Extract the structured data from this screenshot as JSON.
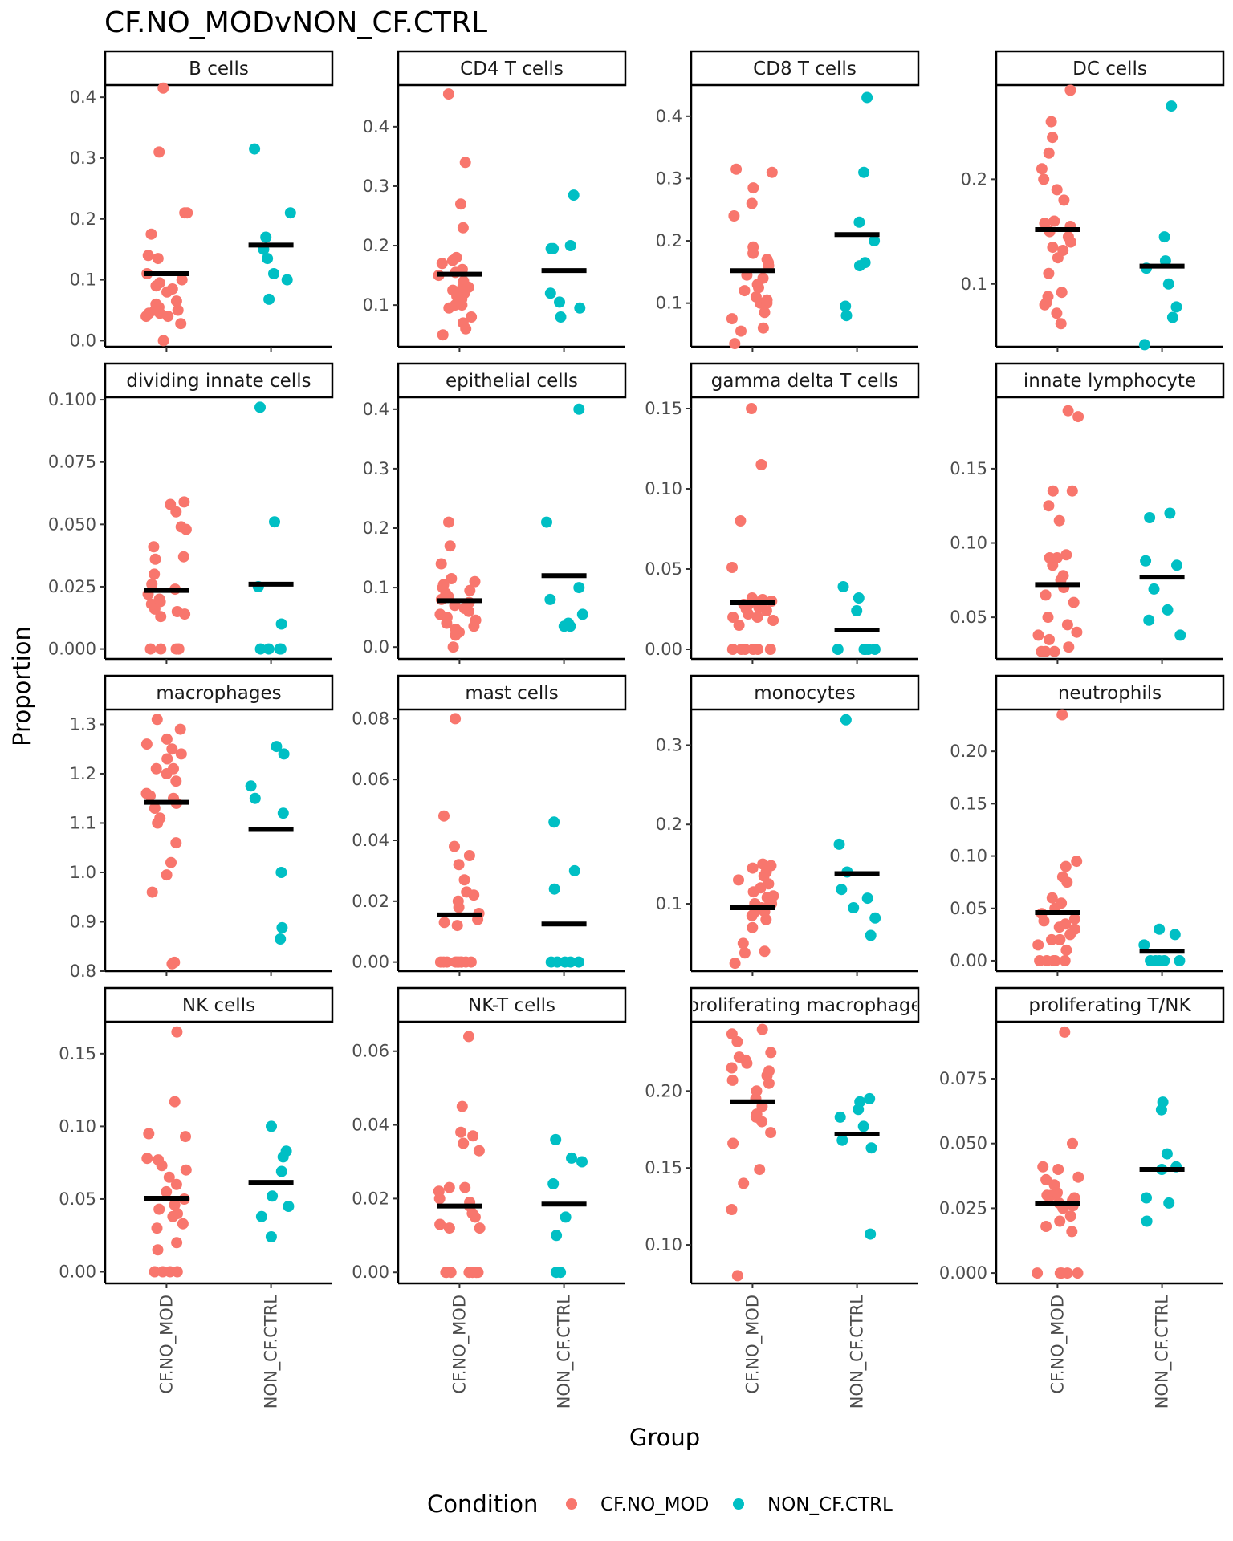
{
  "chart_data": {
    "type": "scatter",
    "title": "CF.NO_MODvNON_CF.CTRL",
    "xlabel": "Group",
    "ylabel": "Proportion",
    "groups": [
      "CF.NO_MOD",
      "NON_CF.CTRL"
    ],
    "legend": {
      "title": "Condition",
      "position": "bottom",
      "entries": [
        {
          "label": "CF.NO_MOD",
          "color": "#F8766D"
        },
        {
          "label": "NON_CF.CTRL",
          "color": "#00BFC4"
        }
      ]
    },
    "panels": [
      {
        "title": "B cells",
        "ylim": [
          -0.01,
          0.42
        ],
        "ticks": [
          0.0,
          0.1,
          0.2,
          0.3,
          0.4
        ],
        "decimals": 1,
        "series": [
          {
            "group": "CF.NO_MOD",
            "median": 0.11,
            "values": [
              0.0,
              0.028,
              0.045,
              0.05,
              0.04,
              0.055,
              0.065,
              0.085,
              0.09,
              0.1,
              0.11,
              0.135,
              0.14,
              0.175,
              0.21,
              0.21,
              0.31,
              0.415,
              0.045,
              0.06,
              0.08,
              0.095,
              0.05,
              0.04
            ]
          },
          {
            "group": "NON_CF.CTRL",
            "median": 0.157,
            "values": [
              0.068,
              0.1,
              0.11,
              0.135,
              0.15,
              0.17,
              0.21,
              0.315
            ]
          }
        ]
      },
      {
        "title": "CD4 T cells",
        "ylim": [
          0.03,
          0.47
        ],
        "ticks": [
          0.1,
          0.2,
          0.3,
          0.4
        ],
        "decimals": 1,
        "series": [
          {
            "group": "CF.NO_MOD",
            "median": 0.152,
            "values": [
              0.05,
              0.06,
              0.07,
              0.08,
              0.095,
              0.1,
              0.11,
              0.115,
              0.12,
              0.125,
              0.13,
              0.14,
              0.15,
              0.155,
              0.16,
              0.17,
              0.175,
              0.18,
              0.23,
              0.27,
              0.34,
              0.455,
              0.1,
              0.13
            ]
          },
          {
            "group": "NON_CF.CTRL",
            "median": 0.158,
            "values": [
              0.08,
              0.095,
              0.105,
              0.12,
              0.195,
              0.195,
              0.2,
              0.285
            ]
          }
        ]
      },
      {
        "title": "CD8 T cells",
        "ylim": [
          0.03,
          0.45
        ],
        "ticks": [
          0.1,
          0.2,
          0.3,
          0.4
        ],
        "decimals": 1,
        "series": [
          {
            "group": "CF.NO_MOD",
            "median": 0.152,
            "values": [
              0.035,
              0.055,
              0.06,
              0.075,
              0.085,
              0.1,
              0.1,
              0.105,
              0.11,
              0.12,
              0.125,
              0.13,
              0.14,
              0.145,
              0.16,
              0.165,
              0.17,
              0.18,
              0.19,
              0.24,
              0.26,
              0.285,
              0.31,
              0.315
            ]
          },
          {
            "group": "NON_CF.CTRL",
            "median": 0.21,
            "values": [
              0.08,
              0.095,
              0.16,
              0.165,
              0.2,
              0.23,
              0.31,
              0.43
            ]
          }
        ]
      },
      {
        "title": "DC cells",
        "ylim": [
          0.04,
          0.29
        ],
        "ticks": [
          0.1,
          0.2
        ],
        "decimals": 1,
        "series": [
          {
            "group": "CF.NO_MOD",
            "median": 0.152,
            "values": [
              0.062,
              0.072,
              0.08,
              0.082,
              0.088,
              0.092,
              0.11,
              0.125,
              0.132,
              0.135,
              0.14,
              0.145,
              0.15,
              0.155,
              0.158,
              0.16,
              0.18,
              0.19,
              0.2,
              0.21,
              0.225,
              0.24,
              0.255,
              0.285
            ]
          },
          {
            "group": "NON_CF.CTRL",
            "median": 0.117,
            "values": [
              0.042,
              0.068,
              0.078,
              0.1,
              0.115,
              0.122,
              0.145,
              0.27
            ]
          }
        ]
      },
      {
        "title": "dividing innate cells",
        "ylim": [
          -0.004,
          0.101
        ],
        "ticks": [
          0.0,
          0.025,
          0.05,
          0.075,
          0.1
        ],
        "decimals": 3,
        "series": [
          {
            "group": "CF.NO_MOD",
            "median": 0.0235,
            "values": [
              0.0,
              0.0,
              0.0,
              0.0,
              0.0,
              0.013,
              0.014,
              0.015,
              0.016,
              0.018,
              0.019,
              0.02,
              0.022,
              0.024,
              0.026,
              0.03,
              0.036,
              0.037,
              0.041,
              0.048,
              0.049,
              0.055,
              0.058,
              0.059
            ]
          },
          {
            "group": "NON_CF.CTRL",
            "median": 0.026,
            "values": [
              0.0,
              0.0,
              0.0,
              0.0,
              0.01,
              0.025,
              0.051,
              0.097
            ]
          }
        ]
      },
      {
        "title": "epithelial cells",
        "ylim": [
          -0.02,
          0.42
        ],
        "ticks": [
          0.0,
          0.1,
          0.2,
          0.3,
          0.4
        ],
        "decimals": 1,
        "series": [
          {
            "group": "CF.NO_MOD",
            "median": 0.078,
            "values": [
              0.0,
              0.02,
              0.025,
              0.03,
              0.035,
              0.04,
              0.045,
              0.05,
              0.055,
              0.06,
              0.065,
              0.07,
              0.075,
              0.08,
              0.085,
              0.09,
              0.095,
              0.1,
              0.105,
              0.11,
              0.115,
              0.14,
              0.17,
              0.21
            ]
          },
          {
            "group": "NON_CF.CTRL",
            "median": 0.12,
            "values": [
              0.035,
              0.035,
              0.04,
              0.055,
              0.08,
              0.1,
              0.21,
              0.4
            ]
          }
        ]
      },
      {
        "title": "gamma delta T cells",
        "ylim": [
          -0.006,
          0.157
        ],
        "ticks": [
          0.0,
          0.05,
          0.1,
          0.15
        ],
        "decimals": 2,
        "series": [
          {
            "group": "CF.NO_MOD",
            "median": 0.029,
            "values": [
              0.0,
              0.0,
              0.0,
              0.0,
              0.0,
              0.0,
              0.015,
              0.018,
              0.02,
              0.022,
              0.024,
              0.026,
              0.028,
              0.03,
              0.032,
              0.02,
              0.025,
              0.028,
              0.03,
              0.031,
              0.051,
              0.08,
              0.115,
              0.15
            ]
          },
          {
            "group": "NON_CF.CTRL",
            "median": 0.012,
            "values": [
              0.0,
              0.0,
              0.0,
              0.0,
              0.0,
              0.024,
              0.032,
              0.039
            ]
          }
        ]
      },
      {
        "title": "innate lymphocyte",
        "ylim": [
          0.022,
          0.198
        ],
        "ticks": [
          0.05,
          0.1,
          0.15
        ],
        "decimals": 2,
        "series": [
          {
            "group": "CF.NO_MOD",
            "median": 0.072,
            "values": [
              0.027,
              0.027,
              0.027,
              0.03,
              0.035,
              0.038,
              0.04,
              0.045,
              0.05,
              0.06,
              0.065,
              0.07,
              0.075,
              0.078,
              0.085,
              0.09,
              0.09,
              0.092,
              0.115,
              0.125,
              0.135,
              0.135,
              0.185,
              0.189
            ]
          },
          {
            "group": "NON_CF.CTRL",
            "median": 0.077,
            "values": [
              0.038,
              0.048,
              0.055,
              0.069,
              0.085,
              0.088,
              0.117,
              0.12
            ]
          }
        ]
      },
      {
        "title": "macrophages",
        "ylim": [
          0.8,
          1.33
        ],
        "ticks": [
          0.8,
          0.9,
          1.0,
          1.1,
          1.2,
          1.3
        ],
        "decimals": 1,
        "series": [
          {
            "group": "CF.NO_MOD",
            "median": 1.142,
            "values": [
              0.815,
              0.818,
              0.96,
              0.995,
              1.02,
              1.06,
              1.1,
              1.11,
              1.13,
              1.14,
              1.15,
              1.155,
              1.16,
              1.185,
              1.2,
              1.21,
              1.21,
              1.23,
              1.24,
              1.25,
              1.26,
              1.27,
              1.29,
              1.31
            ]
          },
          {
            "group": "NON_CF.CTRL",
            "median": 1.087,
            "values": [
              0.865,
              0.888,
              1.0,
              1.12,
              1.15,
              1.175,
              1.24,
              1.255
            ]
          }
        ]
      },
      {
        "title": "mast cells",
        "ylim": [
          -0.003,
          0.083
        ],
        "ticks": [
          0.0,
          0.02,
          0.04,
          0.06,
          0.08
        ],
        "decimals": 2,
        "series": [
          {
            "group": "CF.NO_MOD",
            "median": 0.0155,
            "values": [
              0.0,
              0.0,
              0.0,
              0.0,
              0.0,
              0.0,
              0.0,
              0.0,
              0.0,
              0.0,
              0.012,
              0.013,
              0.014,
              0.016,
              0.018,
              0.02,
              0.022,
              0.023,
              0.027,
              0.032,
              0.035,
              0.038,
              0.048,
              0.08
            ]
          },
          {
            "group": "NON_CF.CTRL",
            "median": 0.0125,
            "values": [
              0.0,
              0.0,
              0.0,
              0.0,
              0.0,
              0.024,
              0.03,
              0.046
            ]
          }
        ]
      },
      {
        "title": "monocytes",
        "ylim": [
          0.015,
          0.345
        ],
        "ticks": [
          0.1,
          0.2,
          0.3
        ],
        "decimals": 1,
        "series": [
          {
            "group": "CF.NO_MOD",
            "median": 0.095,
            "values": [
              0.025,
              0.038,
              0.04,
              0.05,
              0.07,
              0.08,
              0.085,
              0.09,
              0.095,
              0.1,
              0.105,
              0.108,
              0.11,
              0.115,
              0.12,
              0.125,
              0.13,
              0.135,
              0.14,
              0.145,
              0.148,
              0.15,
              0.09,
              0.1
            ]
          },
          {
            "group": "NON_CF.CTRL",
            "median": 0.138,
            "values": [
              0.06,
              0.082,
              0.095,
              0.107,
              0.118,
              0.14,
              0.175,
              0.332
            ]
          }
        ]
      },
      {
        "title": "neutrophils",
        "ylim": [
          -0.01,
          0.24
        ],
        "ticks": [
          0.0,
          0.05,
          0.1,
          0.15,
          0.2
        ],
        "decimals": 2,
        "series": [
          {
            "group": "CF.NO_MOD",
            "median": 0.046,
            "values": [
              0.0,
              0.0,
              0.0,
              0.0,
              0.0,
              0.01,
              0.015,
              0.02,
              0.025,
              0.03,
              0.032,
              0.035,
              0.038,
              0.04,
              0.045,
              0.05,
              0.055,
              0.06,
              0.075,
              0.08,
              0.09,
              0.095,
              0.235,
              0.02
            ]
          },
          {
            "group": "NON_CF.CTRL",
            "median": 0.009,
            "values": [
              0.0,
              0.0,
              0.0,
              0.0,
              0.0,
              0.015,
              0.025,
              0.03
            ]
          }
        ]
      },
      {
        "title": "NK cells",
        "ylim": [
          -0.008,
          0.172
        ],
        "ticks": [
          0.0,
          0.05,
          0.1,
          0.15
        ],
        "decimals": 2,
        "series": [
          {
            "group": "CF.NO_MOD",
            "median": 0.0505,
            "values": [
              0.0,
              0.0,
              0.0,
              0.0,
              0.015,
              0.02,
              0.03,
              0.033,
              0.038,
              0.04,
              0.043,
              0.046,
              0.05,
              0.055,
              0.06,
              0.065,
              0.07,
              0.073,
              0.077,
              0.078,
              0.093,
              0.095,
              0.117,
              0.165
            ]
          },
          {
            "group": "NON_CF.CTRL",
            "median": 0.0615,
            "values": [
              0.024,
              0.038,
              0.045,
              0.052,
              0.069,
              0.079,
              0.083,
              0.1
            ]
          }
        ]
      },
      {
        "title": "NK-T cells",
        "ylim": [
          -0.003,
          0.068
        ],
        "ticks": [
          0.0,
          0.02,
          0.04,
          0.06
        ],
        "decimals": 2,
        "series": [
          {
            "group": "CF.NO_MOD",
            "median": 0.018,
            "values": [
              0.0,
              0.0,
              0.0,
              0.0,
              0.0,
              0.0,
              0.0,
              0.012,
              0.013,
              0.015,
              0.016,
              0.018,
              0.019,
              0.02,
              0.022,
              0.023,
              0.023,
              0.033,
              0.035,
              0.037,
              0.038,
              0.045,
              0.064,
              0.012
            ]
          },
          {
            "group": "NON_CF.CTRL",
            "median": 0.0185,
            "values": [
              0.0,
              0.0,
              0.01,
              0.015,
              0.024,
              0.03,
              0.031,
              0.036
            ]
          }
        ]
      },
      {
        "title": "proliferating macrophage",
        "ylim": [
          0.075,
          0.245
        ],
        "ticks": [
          0.1,
          0.15,
          0.2
        ],
        "decimals": 2,
        "series": [
          {
            "group": "CF.NO_MOD",
            "median": 0.193,
            "values": [
              0.08,
              0.123,
              0.14,
              0.149,
              0.166,
              0.173,
              0.18,
              0.183,
              0.185,
              0.19,
              0.195,
              0.2,
              0.205,
              0.207,
              0.21,
              0.213,
              0.215,
              0.218,
              0.22,
              0.222,
              0.225,
              0.232,
              0.237,
              0.24
            ]
          },
          {
            "group": "NON_CF.CTRL",
            "median": 0.172,
            "values": [
              0.107,
              0.163,
              0.168,
              0.177,
              0.183,
              0.188,
              0.193,
              0.195
            ]
          }
        ]
      },
      {
        "title": "proliferating T/NK",
        "ylim": [
          -0.004,
          0.097
        ],
        "ticks": [
          0.0,
          0.025,
          0.05,
          0.075
        ],
        "decimals": 3,
        "series": [
          {
            "group": "CF.NO_MOD",
            "median": 0.027,
            "values": [
              0.0,
              0.0,
              0.0,
              0.0,
              0.0,
              0.016,
              0.018,
              0.02,
              0.022,
              0.025,
              0.026,
              0.027,
              0.028,
              0.029,
              0.03,
              0.03,
              0.031,
              0.034,
              0.036,
              0.037,
              0.04,
              0.041,
              0.05,
              0.093
            ]
          },
          {
            "group": "NON_CF.CTRL",
            "median": 0.04,
            "values": [
              0.02,
              0.027,
              0.029,
              0.04,
              0.041,
              0.046,
              0.063,
              0.066
            ]
          }
        ]
      }
    ]
  }
}
